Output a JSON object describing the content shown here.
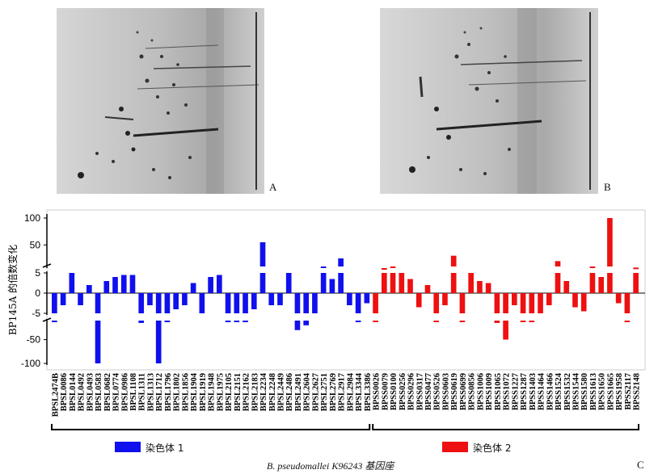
{
  "panels": {
    "a_label": "A",
    "b_label": "B",
    "c_label": "C"
  },
  "chart_data": {
    "type": "bar",
    "ylabel": "BP145A 的倍数变化",
    "yticks": [
      "100",
      "50",
      "5",
      "0",
      "-5",
      "-50",
      "-100"
    ],
    "broken_axis": true,
    "ylim": [
      -100,
      100
    ],
    "group_caption": "B. pseudomallei K96243 基因座",
    "groups": [
      {
        "name": "染色体 1",
        "color": "#1010ee"
      },
      {
        "name": "染色体 2",
        "color": "#ee1010"
      }
    ],
    "categories": [
      "BPSL2474B",
      "BPSL0086",
      "BPSL0144",
      "BPSL0492",
      "BPSL0493",
      "BPSL0583",
      "BPSL0682",
      "BPSL0774",
      "BPSL0986",
      "BPSL1108",
      "BPSL1311",
      "BPSL1313",
      "BPSL1712",
      "BPSL1796",
      "BPSL1802",
      "BPSL1856",
      "BPSL1904",
      "BPSL1919",
      "BPSL1948",
      "BPSL1975",
      "BPSL2105",
      "BPSL2151",
      "BPSL2162",
      "BPSL2183",
      "BPSL2234",
      "BPSL2248",
      "BPSL2449",
      "BPSL2486",
      "BPSL2491",
      "BPSL2604",
      "BPSL2627",
      "BPSL2751",
      "BPSL2769",
      "BPSL2917",
      "BPSL2984",
      "BPSL3344",
      "BPSL3386",
      "BPSS0026",
      "BPSS0079",
      "BPSS0100",
      "BPSS0256",
      "BPSS0296",
      "BPSS0317",
      "BPSS0477",
      "BPSS0526",
      "BPSS0603",
      "BPSS0619",
      "BPSS0699",
      "BPSS0856",
      "BPSS1006",
      "BPSS1009",
      "BPSS1065",
      "BPSS1072",
      "BPSS1227",
      "BPSS1287",
      "BPSS1403",
      "BPSS1464",
      "BPSS1466",
      "BPSS1524",
      "BPSS1532",
      "BPSS1544",
      "BPSS1580",
      "BPSS1613",
      "BPSS1650",
      "BPSS1665",
      "BPSS1958",
      "BPSS2117",
      "BPSS2148"
    ],
    "values": [
      -6,
      -3,
      5,
      -3,
      2,
      -100,
      3,
      4,
      4.5,
      4.5,
      -15,
      -3,
      -100,
      -8,
      -4,
      -3,
      2.5,
      -5,
      4,
      4.5,
      -6,
      -6,
      -10,
      -4,
      55,
      -3,
      -3,
      5,
      -30,
      -20,
      -5,
      10,
      3.5,
      25,
      -3,
      -6,
      -2.5,
      -8,
      7,
      10,
      5,
      3.5,
      -3.5,
      2,
      -8,
      -3,
      30,
      -8,
      5,
      3,
      2.5,
      -15,
      -50,
      -3,
      -8,
      -6,
      -5,
      -3,
      20,
      3,
      -3.5,
      -4.5,
      10,
      4,
      100,
      -2.5,
      -6,
      8
    ],
    "series_group": [
      0,
      0,
      0,
      0,
      0,
      0,
      0,
      0,
      0,
      0,
      0,
      0,
      0,
      0,
      0,
      0,
      0,
      0,
      0,
      0,
      0,
      0,
      0,
      0,
      0,
      0,
      0,
      0,
      0,
      0,
      0,
      0,
      0,
      0,
      0,
      0,
      0,
      1,
      1,
      1,
      1,
      1,
      1,
      1,
      1,
      1,
      1,
      1,
      1,
      1,
      1,
      1,
      1,
      1,
      1,
      1,
      1,
      1,
      1,
      1,
      1,
      1,
      1,
      1,
      1,
      1,
      1,
      1
    ]
  }
}
